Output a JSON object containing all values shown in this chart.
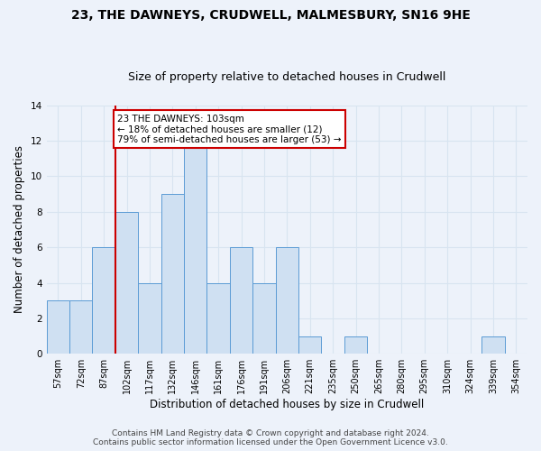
{
  "title1": "23, THE DAWNEYS, CRUDWELL, MALMESBURY, SN16 9HE",
  "title2": "Size of property relative to detached houses in Crudwell",
  "xlabel": "Distribution of detached houses by size in Crudwell",
  "ylabel": "Number of detached properties",
  "categories": [
    "57sqm",
    "72sqm",
    "87sqm",
    "102sqm",
    "117sqm",
    "132sqm",
    "146sqm",
    "161sqm",
    "176sqm",
    "191sqm",
    "206sqm",
    "221sqm",
    "235sqm",
    "250sqm",
    "265sqm",
    "280sqm",
    "295sqm",
    "310sqm",
    "324sqm",
    "339sqm",
    "354sqm"
  ],
  "values": [
    3,
    3,
    6,
    8,
    4,
    9,
    12,
    4,
    6,
    4,
    6,
    1,
    0,
    1,
    0,
    0,
    0,
    0,
    0,
    1,
    0
  ],
  "bar_color": "#cfe0f2",
  "bar_edge_color": "#5b9bd5",
  "vline_x_index": 3,
  "annotation_line1": "23 THE DAWNEYS: 103sqm",
  "annotation_line2": "← 18% of detached houses are smaller (12)",
  "annotation_line3": "79% of semi-detached houses are larger (53) →",
  "annotation_box_color": "#ffffff",
  "annotation_box_edge": "#cc0000",
  "vline_color": "#cc0000",
  "ylim": [
    0,
    14
  ],
  "yticks": [
    0,
    2,
    4,
    6,
    8,
    10,
    12,
    14
  ],
  "footer1": "Contains HM Land Registry data © Crown copyright and database right 2024.",
  "footer2": "Contains public sector information licensed under the Open Government Licence v3.0.",
  "bg_color": "#edf2fa",
  "grid_color": "#d8e4f0",
  "title_fontsize": 10,
  "subtitle_fontsize": 9,
  "axis_label_fontsize": 8.5,
  "tick_fontsize": 7,
  "footer_fontsize": 6.5,
  "annotation_fontsize": 7.5
}
